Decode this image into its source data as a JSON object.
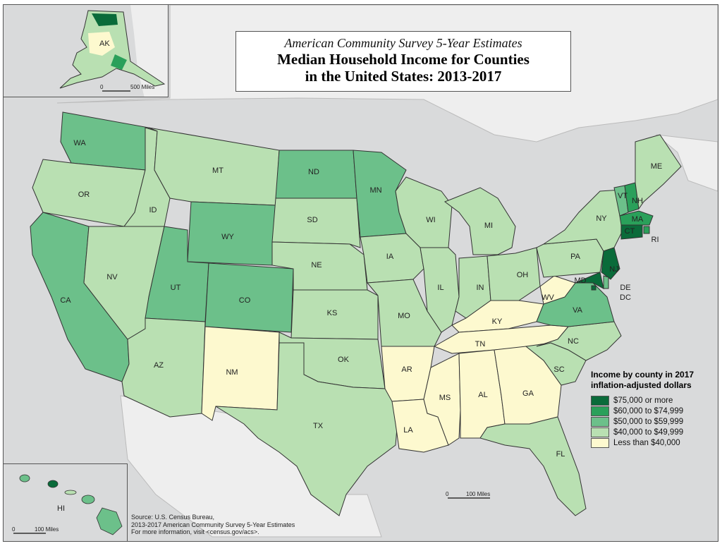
{
  "title": {
    "subtitle": "American Community Survey 5-Year Estimates",
    "line1": "Median Household Income for Counties",
    "line2": "in the United States: 2013-2017"
  },
  "legend": {
    "title_line1": "Income by county in 2017",
    "title_line2": "inflation-adjusted dollars",
    "items": [
      {
        "label": "$75,000 or more",
        "color": "#0a6b3a"
      },
      {
        "label": "$60,000 to $74,999",
        "color": "#2aa05a"
      },
      {
        "label": "$50,000 to $59,999",
        "color": "#6cc08a"
      },
      {
        "label": "$40,000 to $49,999",
        "color": "#b9e0b2"
      },
      {
        "label": "Less than $40,000",
        "color": "#fdf9cf"
      }
    ]
  },
  "colors": {
    "sea": "#d9dadb",
    "land_other": "#eeeeee",
    "border": "#333333"
  },
  "source": {
    "line1": "Source: U.S. Census Bureau,",
    "line2": "2013-2017 American Community Survey 5-Year Estimates",
    "line3": "For more information, visit  <census.gov/acs>."
  },
  "scales": {
    "main": {
      "zero": "0",
      "value": "100 Miles"
    },
    "alaska": {
      "zero": "0",
      "value": "500 Miles"
    },
    "hawaii": {
      "zero": "0",
      "value": "100 Miles"
    }
  },
  "insets": {
    "alaska": "AK",
    "hawaii": "HI"
  },
  "states": [
    {
      "abbr": "WA",
      "color": "#6cc08a"
    },
    {
      "abbr": "OR",
      "color": "#b9e0b2"
    },
    {
      "abbr": "CA",
      "color": "#6cc08a"
    },
    {
      "abbr": "ID",
      "color": "#b9e0b2"
    },
    {
      "abbr": "NV",
      "color": "#b9e0b2"
    },
    {
      "abbr": "MT",
      "color": "#b9e0b2"
    },
    {
      "abbr": "WY",
      "color": "#6cc08a"
    },
    {
      "abbr": "UT",
      "color": "#6cc08a"
    },
    {
      "abbr": "AZ",
      "color": "#b9e0b2"
    },
    {
      "abbr": "CO",
      "color": "#6cc08a"
    },
    {
      "abbr": "NM",
      "color": "#fdf9cf"
    },
    {
      "abbr": "ND",
      "color": "#6cc08a"
    },
    {
      "abbr": "SD",
      "color": "#b9e0b2"
    },
    {
      "abbr": "NE",
      "color": "#b9e0b2"
    },
    {
      "abbr": "KS",
      "color": "#b9e0b2"
    },
    {
      "abbr": "OK",
      "color": "#b9e0b2"
    },
    {
      "abbr": "TX",
      "color": "#b9e0b2"
    },
    {
      "abbr": "MN",
      "color": "#6cc08a"
    },
    {
      "abbr": "IA",
      "color": "#b9e0b2"
    },
    {
      "abbr": "MO",
      "color": "#b9e0b2"
    },
    {
      "abbr": "AR",
      "color": "#fdf9cf"
    },
    {
      "abbr": "LA",
      "color": "#fdf9cf"
    },
    {
      "abbr": "WI",
      "color": "#b9e0b2"
    },
    {
      "abbr": "IL",
      "color": "#b9e0b2"
    },
    {
      "abbr": "MI",
      "color": "#b9e0b2"
    },
    {
      "abbr": "IN",
      "color": "#b9e0b2"
    },
    {
      "abbr": "OH",
      "color": "#b9e0b2"
    },
    {
      "abbr": "KY",
      "color": "#fdf9cf"
    },
    {
      "abbr": "TN",
      "color": "#fdf9cf"
    },
    {
      "abbr": "MS",
      "color": "#fdf9cf"
    },
    {
      "abbr": "AL",
      "color": "#fdf9cf"
    },
    {
      "abbr": "GA",
      "color": "#fdf9cf"
    },
    {
      "abbr": "FL",
      "color": "#b9e0b2"
    },
    {
      "abbr": "SC",
      "color": "#b9e0b2"
    },
    {
      "abbr": "NC",
      "color": "#b9e0b2"
    },
    {
      "abbr": "VA",
      "color": "#6cc08a"
    },
    {
      "abbr": "WV",
      "color": "#fdf9cf"
    },
    {
      "abbr": "PA",
      "color": "#b9e0b2"
    },
    {
      "abbr": "NY",
      "color": "#b9e0b2"
    },
    {
      "abbr": "VT",
      "color": "#6cc08a"
    },
    {
      "abbr": "NH",
      "color": "#2aa05a"
    },
    {
      "abbr": "ME",
      "color": "#b9e0b2"
    },
    {
      "abbr": "MA",
      "color": "#2aa05a"
    },
    {
      "abbr": "RI",
      "color": "#2aa05a"
    },
    {
      "abbr": "NJ",
      "color": "#0a6b3a"
    },
    {
      "abbr": "DE",
      "color": "#6cc08a"
    },
    {
      "abbr": "DC",
      "color": "#0a6b3a"
    },
    {
      "abbr": "MD",
      "color": "#0a6b3a"
    },
    {
      "abbr": "CT",
      "color": "#0a6b3a"
    }
  ]
}
